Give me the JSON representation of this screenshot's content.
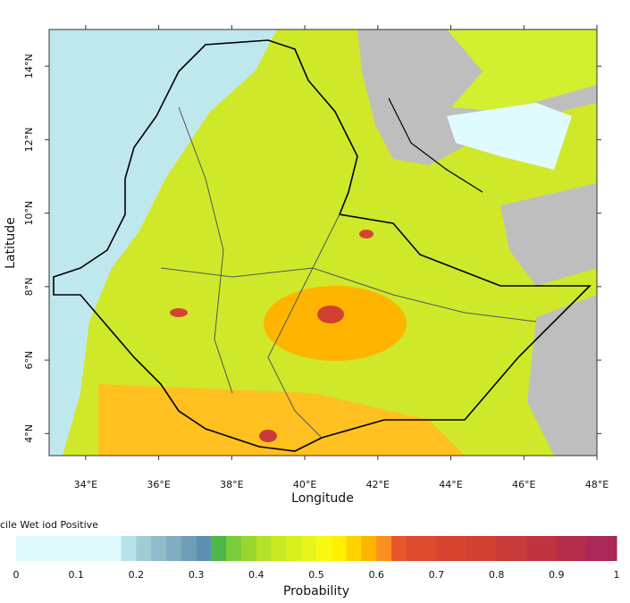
{
  "chart_data": {
    "type": "map",
    "xlabel": "Longitude",
    "ylabel": "Latitude",
    "xlim": [
      33,
      48
    ],
    "ylim": [
      3.4,
      15
    ],
    "xticks": [
      {
        "value": 34,
        "label": "34°E"
      },
      {
        "value": 36,
        "label": "36°E"
      },
      {
        "value": 38,
        "label": "38°E"
      },
      {
        "value": 40,
        "label": "40°E"
      },
      {
        "value": 42,
        "label": "42°E"
      },
      {
        "value": 44,
        "label": "44°E"
      },
      {
        "value": 46,
        "label": "46°E"
      },
      {
        "value": 48,
        "label": "48°E"
      }
    ],
    "yticks": [
      {
        "value": 4,
        "label": "4°N"
      },
      {
        "value": 6,
        "label": "6°N"
      },
      {
        "value": 8,
        "label": "8°N"
      },
      {
        "value": 10,
        "label": "10°N"
      },
      {
        "value": 12,
        "label": "12°N"
      },
      {
        "value": 14,
        "label": "14°N"
      }
    ],
    "colorbar": {
      "title": "cile Wet iod Positive",
      "label": "Probability",
      "ticks": [
        0,
        0.1,
        0.2,
        0.3,
        0.4,
        0.5,
        0.6,
        0.7,
        0.8,
        0.9,
        1
      ],
      "bins": [
        0,
        0.175,
        0.2,
        0.225,
        0.25,
        0.275,
        0.3,
        0.325,
        0.35,
        0.375,
        0.4,
        0.425,
        0.45,
        0.475,
        0.5,
        0.525,
        0.55,
        0.575,
        0.6,
        0.625,
        0.65,
        0.7,
        0.75,
        0.8,
        0.85,
        0.9,
        0.95,
        1
      ],
      "colors": [
        "#dffbfd",
        "#b7e2e8",
        "#a0ccd6",
        "#8fbccb",
        "#7fadc1",
        "#6f9fb8",
        "#5d90b0",
        "#4db848",
        "#79cc3a",
        "#98d62e",
        "#b5e028",
        "#c8ea22",
        "#d8f01c",
        "#e8f51a",
        "#f7fa10",
        "#fff000",
        "#ffd200",
        "#ffb400",
        "#f99020",
        "#e8552a",
        "#dd4a2e",
        "#d6442f",
        "#d04033",
        "#c83a38",
        "#bf3440",
        "#b52d4a",
        "#aa2757"
      ]
    }
  }
}
